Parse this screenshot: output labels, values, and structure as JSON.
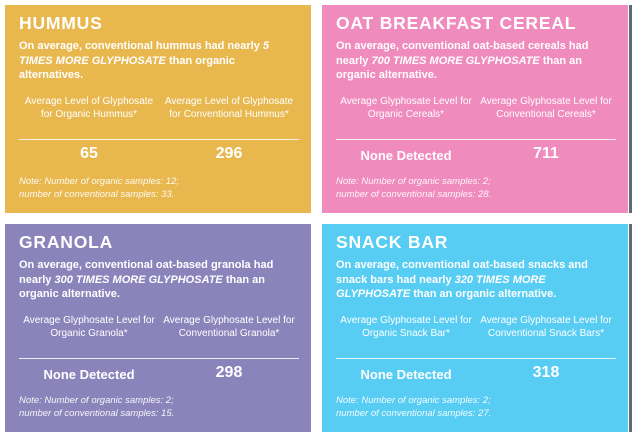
{
  "colors": {
    "hummus": "#e8b84f",
    "oat": "#f08bbd",
    "granola": "#8b84bb",
    "snack": "#58cdf3"
  },
  "hummus": {
    "title": "HUMMUS",
    "desc_pre": "On average, conventional hummus had nearly ",
    "desc_em": "5 TIMES MORE GLYPHOSATE",
    "desc_post": " than organic alternatives.",
    "col_left": "Average Level of Glyphosate for Organic Hummus*",
    "col_right": "Average Level of Glyphosate for Conventional Hummus*",
    "val_left": "65",
    "val_right": "296",
    "note_line1": "Note: Number of organic samples: 12;",
    "note_line2": "number of conventional samples: 33."
  },
  "oat": {
    "title": "OAT BREAKFAST CEREAL",
    "desc_pre": "On average, conventional oat-based cereals had nearly ",
    "desc_em": "700 TIMES MORE GLYPHOSATE",
    "desc_post": " than an organic alternative.",
    "col_left": "Average Glyphosate Level for Organic Cereals*",
    "col_right": "Average Glyphosate Level for Conventional Cereals*",
    "val_left": "None Detected",
    "val_right": "711",
    "note_line1": "Note: Number of organic samples: 2;",
    "note_line2": "number of conventional samples: 28."
  },
  "granola": {
    "title": "GRANOLA",
    "desc_pre": "On average, conventional oat-based granola had nearly ",
    "desc_em": "300 TIMES MORE GLYPHOSATE",
    "desc_post": " than an organic alternative.",
    "col_left": "Average Glyphosate Level for Organic Granola*",
    "col_right": "Average Glyphosate Level for Conventional Granola*",
    "val_left": "None Detected",
    "val_right": "298",
    "note_line1": "Note: Number of organic samples: 2;",
    "note_line2": "number of conventional samples: 15."
  },
  "snack": {
    "title": "SNACK BAR",
    "desc_pre": "On average, conventional oat-based snacks and snack bars had nearly ",
    "desc_em": "320 TIMES MORE GLYPHOSATE",
    "desc_post": " than an organic alternative.",
    "col_left": "Average Glyphosate Level for Organic Snack Bar*",
    "col_right": "Average Glyphosate Level for Conventional Snack Bars*",
    "val_left": "None Detected",
    "val_right": "318",
    "note_line1": "Note: Number of organic samples: 2;",
    "note_line2": "number of conventional samples: 27."
  }
}
